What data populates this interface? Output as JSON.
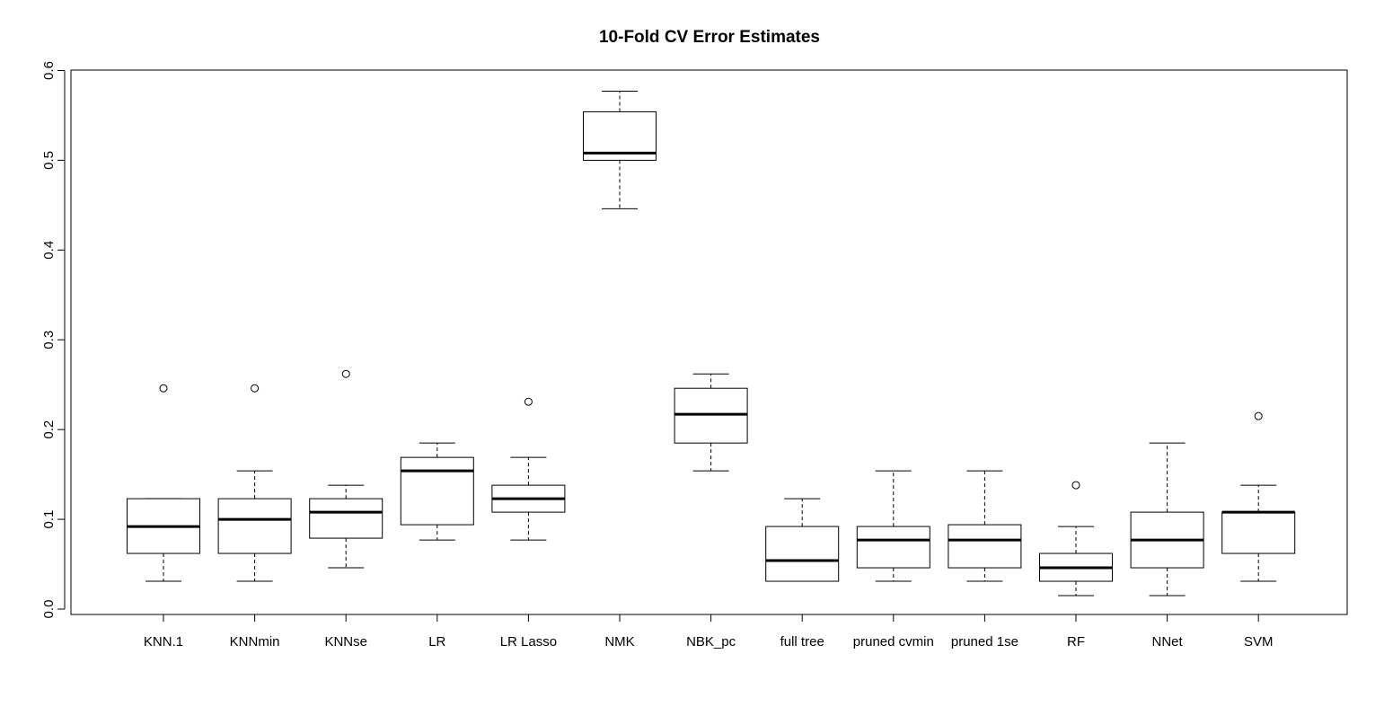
{
  "chart_data": {
    "type": "boxplot",
    "title": "10-Fold CV Error Estimates",
    "xlabel": "",
    "ylabel": "",
    "ylim": [
      0.0,
      0.6
    ],
    "yticks": [
      "0.0",
      "0.1",
      "0.2",
      "0.3",
      "0.4",
      "0.5",
      "0.6"
    ],
    "categories": [
      "KNN.1",
      "KNNmin",
      "KNNse",
      "LR",
      "LR Lasso",
      "NMK",
      "NBK_pc",
      "full tree",
      "pruned cvmin",
      "pruned 1se",
      "RF",
      "NNet",
      "SVM"
    ],
    "boxes": [
      {
        "name": "KNN.1",
        "whisker_low": 0.031,
        "q1": 0.062,
        "median": 0.092,
        "q3": 0.123,
        "whisker_high": 0.123,
        "outliers": [
          0.246
        ]
      },
      {
        "name": "KNNmin",
        "whisker_low": 0.031,
        "q1": 0.062,
        "median": 0.1,
        "q3": 0.123,
        "whisker_high": 0.154,
        "outliers": [
          0.246
        ]
      },
      {
        "name": "KNNse",
        "whisker_low": 0.046,
        "q1": 0.079,
        "median": 0.108,
        "q3": 0.123,
        "whisker_high": 0.138,
        "outliers": [
          0.262
        ]
      },
      {
        "name": "LR",
        "whisker_low": 0.077,
        "q1": 0.094,
        "median": 0.154,
        "q3": 0.169,
        "whisker_high": 0.185,
        "outliers": []
      },
      {
        "name": "LR Lasso",
        "whisker_low": 0.077,
        "q1": 0.108,
        "median": 0.123,
        "q3": 0.138,
        "whisker_high": 0.169,
        "outliers": [
          0.231
        ]
      },
      {
        "name": "NMK",
        "whisker_low": 0.446,
        "q1": 0.5,
        "median": 0.508,
        "q3": 0.554,
        "whisker_high": 0.577,
        "outliers": []
      },
      {
        "name": "NBK_pc",
        "whisker_low": 0.154,
        "q1": 0.185,
        "median": 0.217,
        "q3": 0.246,
        "whisker_high": 0.262,
        "outliers": []
      },
      {
        "name": "full tree",
        "whisker_low": 0.031,
        "q1": 0.031,
        "median": 0.054,
        "q3": 0.092,
        "whisker_high": 0.123,
        "outliers": []
      },
      {
        "name": "pruned cvmin",
        "whisker_low": 0.031,
        "q1": 0.046,
        "median": 0.077,
        "q3": 0.092,
        "whisker_high": 0.154,
        "outliers": []
      },
      {
        "name": "pruned 1se",
        "whisker_low": 0.031,
        "q1": 0.046,
        "median": 0.077,
        "q3": 0.094,
        "whisker_high": 0.154,
        "outliers": []
      },
      {
        "name": "RF",
        "whisker_low": 0.015,
        "q1": 0.031,
        "median": 0.046,
        "q3": 0.062,
        "whisker_high": 0.092,
        "outliers": [
          0.138
        ]
      },
      {
        "name": "NNet",
        "whisker_low": 0.015,
        "q1": 0.046,
        "median": 0.077,
        "q3": 0.108,
        "whisker_high": 0.185,
        "outliers": []
      },
      {
        "name": "SVM",
        "whisker_low": 0.031,
        "q1": 0.062,
        "median": 0.108,
        "q3": 0.108,
        "whisker_high": 0.138,
        "outliers": [
          0.215
        ]
      }
    ],
    "grid": false,
    "colors": {
      "box_fill": "#ffffff",
      "stroke": "#000000",
      "background": "#ffffff"
    }
  }
}
